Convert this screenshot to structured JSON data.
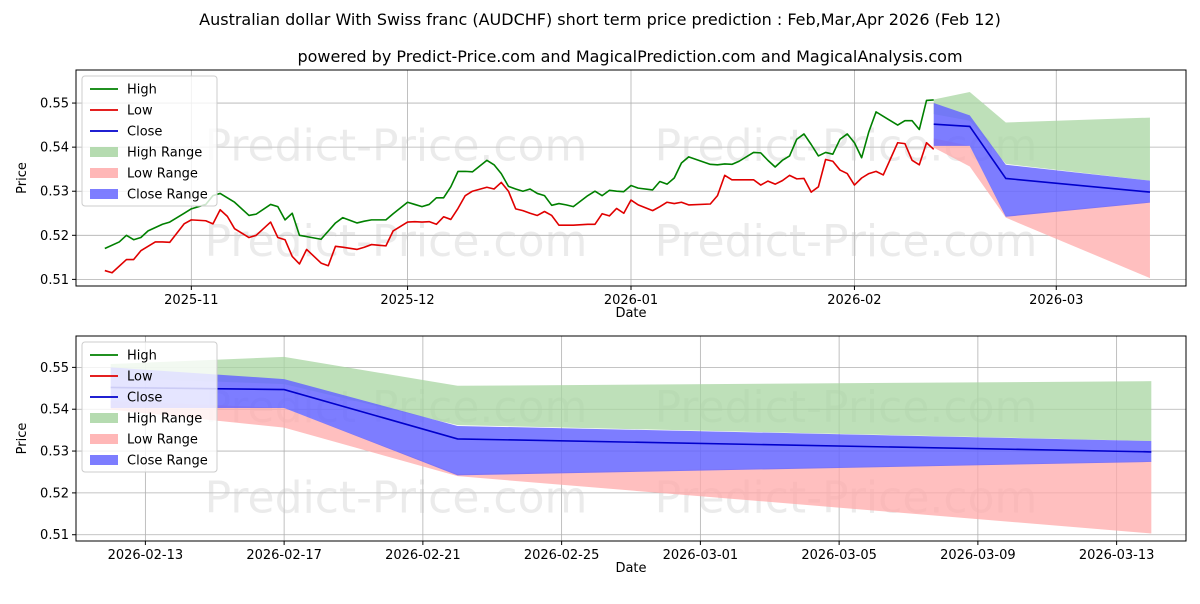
{
  "title": "Australian dollar With Swiss franc (AUDCHF) short term price prediction : Feb,Mar,Apr 2026 (Feb 12)",
  "subtitle": "powered by Predict-Price.com and MagicalPrediction.com and MagicalAnalysis.com",
  "watermark": "Predict-Price.com",
  "colors": {
    "high": "#008000",
    "low": "#e00000",
    "close": "#0000cc",
    "high_range": "#a8d5a2",
    "low_range": "#ffaaaa",
    "close_range": "#6666ff",
    "grid": "#b0b0b0"
  },
  "legend": {
    "position": "top-left",
    "labels": [
      "High",
      "Low",
      "Close",
      "High Range",
      "Low Range",
      "Close Range"
    ]
  },
  "chart_data": [
    {
      "type": "line",
      "panel": "history",
      "xlabel": "Date",
      "ylabel": "Price",
      "xlim": [
        "2025-10-16",
        "2026-03-19"
      ],
      "ylim": [
        0.5085,
        0.5575
      ],
      "x_ticks": [
        "2025-11-01",
        "2025-12-01",
        "2026-01-01",
        "2026-02-01",
        "2026-03-01"
      ],
      "x_tick_labels": [
        "2025-11",
        "2025-12",
        "2026-01",
        "2026-02",
        "2026-03"
      ],
      "y_ticks": [
        0.51,
        0.52,
        0.53,
        0.54,
        0.55
      ],
      "y_tick_labels": [
        "0.51",
        "0.52",
        "0.53",
        "0.54",
        "0.55"
      ],
      "grid": true,
      "series": [
        {
          "name": "High",
          "x": [
            "2025-10-20",
            "2025-10-22",
            "2025-10-23",
            "2025-10-24",
            "2025-10-25",
            "2025-10-26",
            "2025-10-28",
            "2025-10-29",
            "2025-10-31",
            "2025-11-01",
            "2025-11-03",
            "2025-11-04",
            "2025-11-05",
            "2025-11-06",
            "2025-11-07",
            "2025-11-09",
            "2025-11-10",
            "2025-11-12",
            "2025-11-13",
            "2025-11-14",
            "2025-11-15",
            "2025-11-16",
            "2025-11-17",
            "2025-11-19",
            "2025-11-21",
            "2025-11-22",
            "2025-11-24",
            "2025-11-25",
            "2025-11-26",
            "2025-11-28",
            "2025-11-29",
            "2025-12-01",
            "2025-12-02",
            "2025-12-03",
            "2025-12-04",
            "2025-12-05",
            "2025-12-06",
            "2025-12-07",
            "2025-12-08",
            "2025-12-09",
            "2025-12-10",
            "2025-12-12",
            "2025-12-13",
            "2025-12-14",
            "2025-12-15",
            "2025-12-16",
            "2025-12-17",
            "2025-12-18",
            "2025-12-19",
            "2025-12-20",
            "2025-12-21",
            "2025-12-22",
            "2025-12-23",
            "2025-12-24",
            "2025-12-26",
            "2025-12-27",
            "2025-12-28",
            "2025-12-29",
            "2025-12-30",
            "2025-12-31",
            "2026-01-01",
            "2026-01-02",
            "2026-01-04",
            "2026-01-05",
            "2026-01-06",
            "2026-01-07",
            "2026-01-08",
            "2026-01-09",
            "2026-01-12",
            "2026-01-13",
            "2026-01-14",
            "2026-01-15",
            "2026-01-16",
            "2026-01-18",
            "2026-01-19",
            "2026-01-20",
            "2026-01-21",
            "2026-01-22",
            "2026-01-23",
            "2026-01-24",
            "2026-01-25",
            "2026-01-26",
            "2026-01-27",
            "2026-01-28",
            "2026-01-29",
            "2026-01-30",
            "2026-01-31",
            "2026-02-01",
            "2026-02-02",
            "2026-02-03",
            "2026-02-04",
            "2026-02-05",
            "2026-02-07",
            "2026-02-08",
            "2026-02-09",
            "2026-02-10",
            "2026-02-11",
            "2026-02-12"
          ],
          "values": [
            0.517,
            0.5185,
            0.52,
            0.519,
            0.5195,
            0.521,
            0.5225,
            0.523,
            0.525,
            0.526,
            0.527,
            0.529,
            0.5295,
            0.5285,
            0.5275,
            0.5245,
            0.5248,
            0.527,
            0.5265,
            0.5235,
            0.525,
            0.52,
            0.5197,
            0.5191,
            0.5228,
            0.524,
            0.5228,
            0.5232,
            0.5235,
            0.5235,
            0.5249,
            0.5275,
            0.527,
            0.5265,
            0.527,
            0.5285,
            0.5285,
            0.531,
            0.5345,
            0.5345,
            0.5344,
            0.537,
            0.536,
            0.534,
            0.5311,
            0.5305,
            0.53,
            0.5305,
            0.5295,
            0.529,
            0.5268,
            0.5272,
            0.5269,
            0.5265,
            0.529,
            0.53,
            0.529,
            0.5302,
            0.53,
            0.5299,
            0.5313,
            0.5307,
            0.5303,
            0.5322,
            0.5316,
            0.533,
            0.5364,
            0.5378,
            0.5361,
            0.536,
            0.5362,
            0.5361,
            0.5368,
            0.5388,
            0.5387,
            0.537,
            0.5355,
            0.537,
            0.538,
            0.5418,
            0.543,
            0.5406,
            0.538,
            0.5388,
            0.5384,
            0.5418,
            0.543,
            0.541,
            0.5376,
            0.5435,
            0.548,
            0.547,
            0.545,
            0.546,
            0.546,
            0.544,
            0.5506,
            0.5507
          ]
        },
        {
          "name": "Low",
          "x": [
            "2025-10-20",
            "2025-10-21",
            "2025-10-23",
            "2025-10-24",
            "2025-10-25",
            "2025-10-27",
            "2025-10-28",
            "2025-10-29",
            "2025-10-31",
            "2025-11-01",
            "2025-11-03",
            "2025-11-04",
            "2025-11-05",
            "2025-11-06",
            "2025-11-07",
            "2025-11-09",
            "2025-11-10",
            "2025-11-12",
            "2025-11-13",
            "2025-11-14",
            "2025-11-15",
            "2025-11-16",
            "2025-11-17",
            "2025-11-19",
            "2025-11-20",
            "2025-11-21",
            "2025-11-22",
            "2025-11-24",
            "2025-11-25",
            "2025-11-26",
            "2025-11-28",
            "2025-11-29",
            "2025-12-01",
            "2025-12-02",
            "2025-12-03",
            "2025-12-04",
            "2025-12-05",
            "2025-12-06",
            "2025-12-07",
            "2025-12-08",
            "2025-12-09",
            "2025-12-10",
            "2025-12-12",
            "2025-12-13",
            "2025-12-14",
            "2025-12-15",
            "2025-12-16",
            "2025-12-17",
            "2025-12-18",
            "2025-12-19",
            "2025-12-20",
            "2025-12-21",
            "2025-12-22",
            "2025-12-23",
            "2025-12-24",
            "2025-12-26",
            "2025-12-27",
            "2025-12-28",
            "2025-12-29",
            "2025-12-30",
            "2025-12-31",
            "2026-01-01",
            "2026-01-02",
            "2026-01-04",
            "2026-01-05",
            "2026-01-06",
            "2026-01-07",
            "2026-01-08",
            "2026-01-09",
            "2026-01-12",
            "2026-01-13",
            "2026-01-14",
            "2026-01-15",
            "2026-01-16",
            "2026-01-18",
            "2026-01-19",
            "2026-01-20",
            "2026-01-21",
            "2026-01-22",
            "2026-01-23",
            "2026-01-24",
            "2026-01-25",
            "2026-01-26",
            "2026-01-27",
            "2026-01-28",
            "2026-01-29",
            "2026-01-30",
            "2026-01-31",
            "2026-02-01",
            "2026-02-02",
            "2026-02-03",
            "2026-02-04",
            "2026-02-05",
            "2026-02-07",
            "2026-02-08",
            "2026-02-09",
            "2026-02-10",
            "2026-02-11",
            "2026-02-12"
          ],
          "values": [
            0.512,
            0.5115,
            0.5145,
            0.5145,
            0.5165,
            0.5185,
            0.5185,
            0.5184,
            0.5226,
            0.5235,
            0.5233,
            0.5226,
            0.5258,
            0.5243,
            0.5215,
            0.5195,
            0.52,
            0.523,
            0.5195,
            0.519,
            0.5152,
            0.5135,
            0.5168,
            0.5137,
            0.5131,
            0.5175,
            0.5173,
            0.5168,
            0.5173,
            0.5179,
            0.5176,
            0.521,
            0.523,
            0.5231,
            0.523,
            0.5231,
            0.5225,
            0.5242,
            0.5236,
            0.5261,
            0.529,
            0.53,
            0.5309,
            0.5305,
            0.532,
            0.53,
            0.526,
            0.5256,
            0.525,
            0.5245,
            0.5254,
            0.5245,
            0.5223,
            0.5223,
            0.5223,
            0.5225,
            0.5225,
            0.5249,
            0.5244,
            0.5261,
            0.525,
            0.528,
            0.5269,
            0.5256,
            0.5265,
            0.5275,
            0.5272,
            0.5275,
            0.5269,
            0.5271,
            0.529,
            0.5336,
            0.5326,
            0.5326,
            0.5326,
            0.5314,
            0.5323,
            0.5316,
            0.5324,
            0.5336,
            0.5328,
            0.5329,
            0.5298,
            0.531,
            0.5372,
            0.5368,
            0.5348,
            0.534,
            0.5314,
            0.533,
            0.534,
            0.5345,
            0.5337,
            0.541,
            0.5408,
            0.537,
            0.536,
            0.541,
            0.5395
          ]
        }
      ],
      "forecast_x": [
        "2026-02-12",
        "2026-02-17",
        "2026-02-22",
        "2026-03-14"
      ],
      "close": [
        0.5452,
        0.5447,
        0.5329,
        0.5298
      ],
      "close_range": {
        "upper": [
          0.55,
          0.5472,
          0.536,
          0.5324
        ],
        "lower": [
          0.5403,
          0.5403,
          0.5242,
          0.5274
        ]
      },
      "high_range": {
        "upper": [
          0.5508,
          0.5525,
          0.5456,
          0.5467
        ],
        "lower": [
          0.5475,
          0.546,
          0.5362,
          0.5324
        ]
      },
      "low_range": {
        "upper": [
          0.542,
          0.5403,
          0.5245,
          0.5276
        ],
        "lower": [
          0.5399,
          0.5356,
          0.524,
          0.5103
        ]
      }
    },
    {
      "type": "line",
      "panel": "forecast",
      "xlabel": "Date",
      "ylabel": "Price",
      "xlim": [
        "2026-02-11",
        "2026-03-15"
      ],
      "ylim": [
        0.5085,
        0.5575
      ],
      "x_ticks": [
        "2026-02-13",
        "2026-02-17",
        "2026-02-21",
        "2026-02-25",
        "2026-03-01",
        "2026-03-05",
        "2026-03-09",
        "2026-03-13"
      ],
      "x_tick_labels": [
        "2026-02-13",
        "2026-02-17",
        "2026-02-21",
        "2026-02-25",
        "2026-03-01",
        "2026-03-05",
        "2026-03-09",
        "2026-03-13"
      ],
      "y_ticks": [
        0.51,
        0.52,
        0.53,
        0.54,
        0.55
      ],
      "y_tick_labels": [
        "0.51",
        "0.52",
        "0.53",
        "0.54",
        "0.55"
      ],
      "grid": true,
      "forecast_x": [
        "2026-02-12",
        "2026-02-17",
        "2026-02-22",
        "2026-03-14"
      ],
      "close": [
        0.5452,
        0.5447,
        0.5329,
        0.5298
      ],
      "close_range": {
        "upper": [
          0.55,
          0.5472,
          0.536,
          0.5324
        ],
        "lower": [
          0.5403,
          0.5403,
          0.5242,
          0.5274
        ]
      },
      "high_range": {
        "upper": [
          0.5508,
          0.5525,
          0.5456,
          0.5467
        ],
        "lower": [
          0.5475,
          0.546,
          0.5362,
          0.5324
        ]
      },
      "low_range": {
        "upper": [
          0.542,
          0.5403,
          0.5245,
          0.5276
        ],
        "lower": [
          0.5399,
          0.5356,
          0.524,
          0.5103
        ]
      }
    }
  ]
}
